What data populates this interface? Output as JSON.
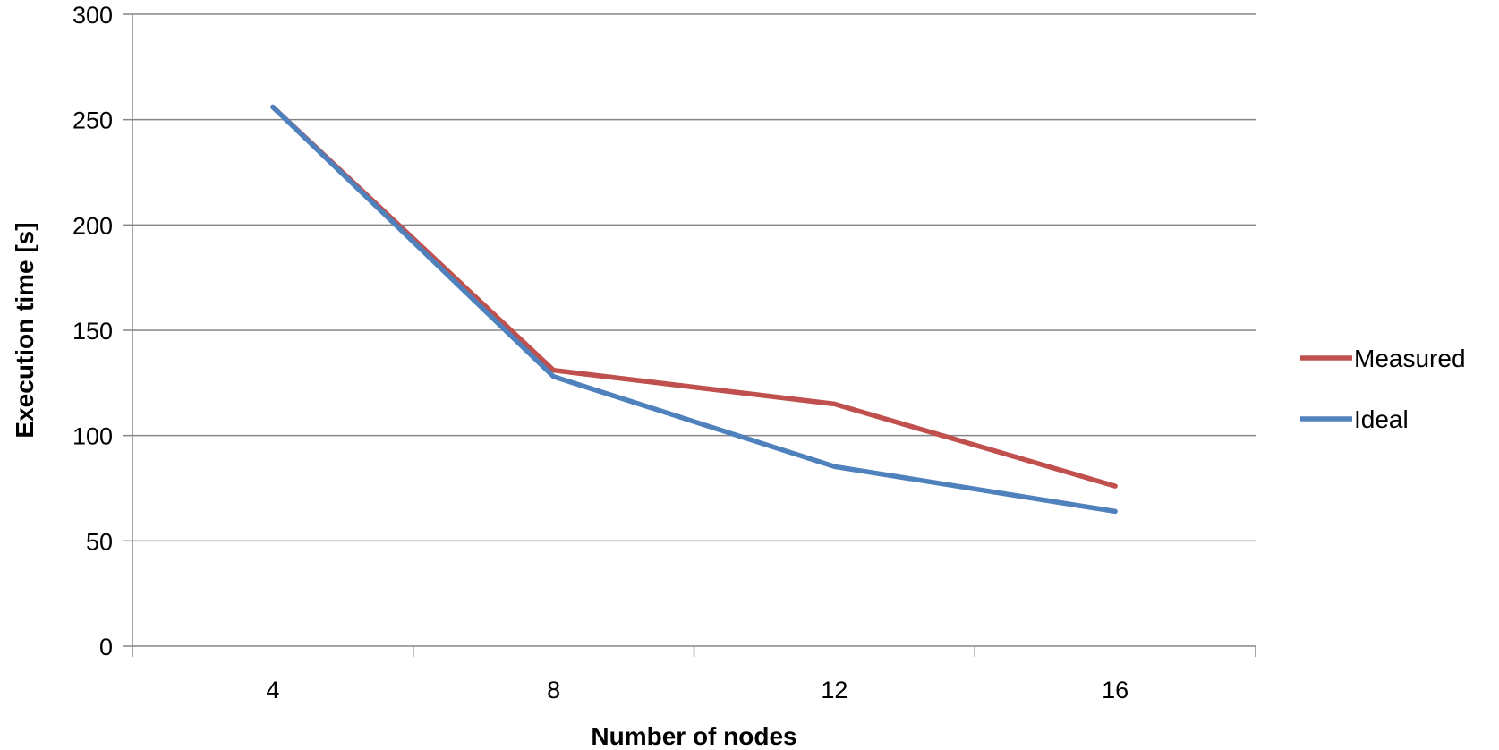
{
  "chart_data": {
    "type": "line",
    "title": "",
    "xlabel": "Number of nodes",
    "ylabel": "Execution time [s]",
    "x": [
      4,
      8,
      12,
      16
    ],
    "categories": [
      "4",
      "8",
      "12",
      "16"
    ],
    "ylim": [
      0,
      300
    ],
    "yticks": [
      0,
      50,
      100,
      150,
      200,
      250,
      300
    ],
    "grid": true,
    "legend_position": "right",
    "series": [
      {
        "name": "Measured",
        "color": "#c0504d",
        "values": [
          256,
          131,
          115,
          76
        ]
      },
      {
        "name": "Ideal",
        "color": "#4f81bd",
        "values": [
          256,
          128,
          85.3,
          64
        ]
      }
    ]
  }
}
